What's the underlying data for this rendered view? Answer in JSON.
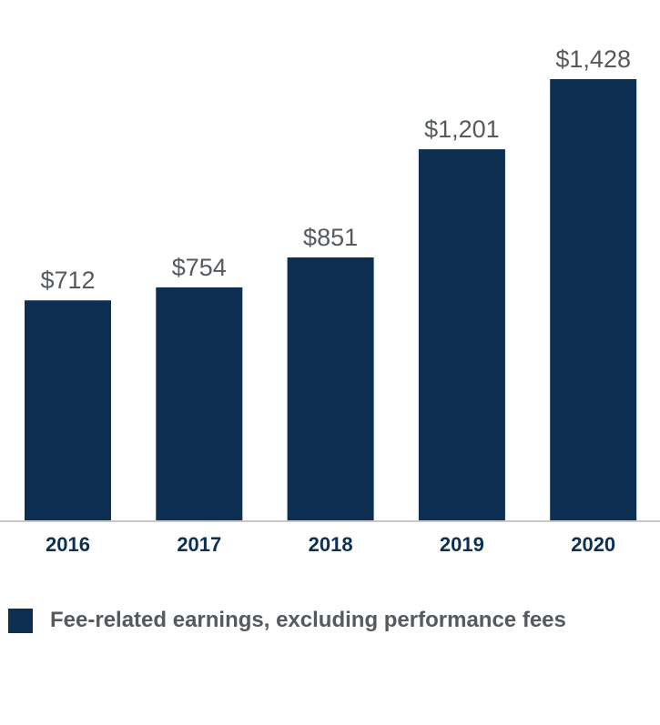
{
  "chart_data": {
    "type": "bar",
    "categories": [
      "2016",
      "2017",
      "2018",
      "2019",
      "2020"
    ],
    "values": [
      712,
      754,
      851,
      1201,
      1428
    ],
    "value_labels": [
      "$712",
      "$754",
      "$851",
      "$1,201",
      "$1,428"
    ],
    "title": "",
    "xlabel": "",
    "ylabel": "",
    "ylim": [
      0,
      1428
    ],
    "grid": false,
    "legend": {
      "placement": "bottom-left",
      "entries": [
        {
          "label": "Fee-related earnings, excluding performance fees",
          "color": "#0d3052"
        }
      ]
    }
  },
  "colors": {
    "bar": "#0d3052",
    "baseline": "#c8c8c8",
    "value_text": "#555a5e",
    "tick_text": "#0d3052"
  }
}
